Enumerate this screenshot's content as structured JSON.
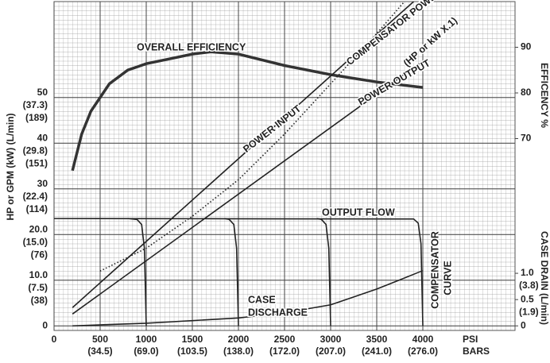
{
  "chart_data": {
    "type": "line",
    "xlabel": "PSI",
    "xlabel2": "BARS",
    "ylabel": "HP or GPM (kW) (L/min)",
    "y2label": "EFFICENCY %",
    "y3label": "CASE DRAIN (L/min)",
    "xlim": [
      0,
      5000
    ],
    "xticks": [
      0,
      500,
      1000,
      1500,
      2000,
      2500,
      3000,
      3500,
      4000
    ],
    "xtick_sublabels": [
      null,
      "(34.5)",
      "(69.0)",
      "(103.5)",
      "(138.0)",
      "(172.0)",
      "(207.0)",
      "(241.0)",
      "(276.0)"
    ],
    "ylim": [
      -1,
      71
    ],
    "yticks": [
      0,
      {
        "value": 10,
        "label": "10.0"
      },
      {
        "value": 20,
        "label": "20.0"
      },
      30,
      40,
      50
    ],
    "ytick_sublabels": [
      [],
      [
        "(7.5)",
        "(38)"
      ],
      [
        "(15.0)",
        "(76)"
      ],
      [
        "(22.4)",
        "(114)"
      ],
      [
        "(29.8)",
        "(151)"
      ],
      [
        "(37.3)",
        "(189)"
      ]
    ],
    "y2lim": [
      28,
      100
    ],
    "y2ticks": [
      70,
      80,
      90
    ],
    "y3lim": [
      -0.087,
      6.17
    ],
    "y3ticks": [
      0,
      0.5,
      {
        "value": 1,
        "label": "1.0"
      }
    ],
    "y3tick_sublabels": [
      [],
      [
        "(1.9)"
      ],
      [
        "(3.8)"
      ]
    ],
    "grid": true,
    "series": [
      {
        "axis": "y2",
        "color": "#333",
        "x": [
          200,
          300,
          400,
          600,
          800,
          1000,
          1500,
          1700,
          2000,
          2500,
          3000,
          3500,
          4000
        ],
        "values": [
          63,
          71,
          76,
          82,
          85,
          86.4,
          88.5,
          89,
          88.5,
          86,
          84,
          82.4,
          81.2
        ]
      },
      {
        "color": "#222",
        "x": [
          200,
          3900
        ],
        "values": [
          4,
          71
        ]
      },
      {
        "color": "#222",
        "dash": true,
        "x": [
          500,
          1000,
          1500,
          2000,
          2500,
          3000,
          3500,
          3800
        ],
        "values": [
          12,
          17,
          24,
          32,
          42,
          53,
          64,
          71
        ]
      },
      {
        "color": "#222",
        "x": [
          200,
          4000
        ],
        "values": [
          2.6,
          58
        ]
      },
      {
        "color": "#222",
        "x": [
          0,
          3900,
          3950,
          3980,
          4000
        ],
        "values": [
          23.5,
          23.4,
          22.5,
          18,
          0
        ]
      },
      {
        "color": "#222",
        "x": [
          800,
          900,
          950,
          980,
          1000
        ],
        "values": [
          23.5,
          23.3,
          22.2,
          17,
          0
        ]
      },
      {
        "color": "#222",
        "x": [
          1850,
          1900,
          1950,
          1980,
          2000
        ],
        "values": [
          23.5,
          23.3,
          22.2,
          17,
          0
        ]
      },
      {
        "color": "#222",
        "x": [
          2850,
          2900,
          2950,
          2980,
          3000
        ],
        "values": [
          23.5,
          23.3,
          22.2,
          17,
          0
        ]
      },
      {
        "axis": "y3",
        "color": "#222",
        "x": [
          200,
          1000,
          2000,
          2500,
          3000,
          3500,
          4000
        ],
        "values": [
          0,
          0.05,
          0.15,
          0.25,
          0.4,
          0.7,
          1.05
        ]
      }
    ],
    "annotations": [
      "OVERALL EFFICIENCY",
      "POWER INPUT",
      "COMPENSATOR POWER",
      "(HP or kW X.1)",
      "POWER OUTPUT",
      "OUTPUT FLOW",
      "CASE",
      "DISCHARGE",
      "COMPENSATOR",
      "CURVE"
    ]
  }
}
